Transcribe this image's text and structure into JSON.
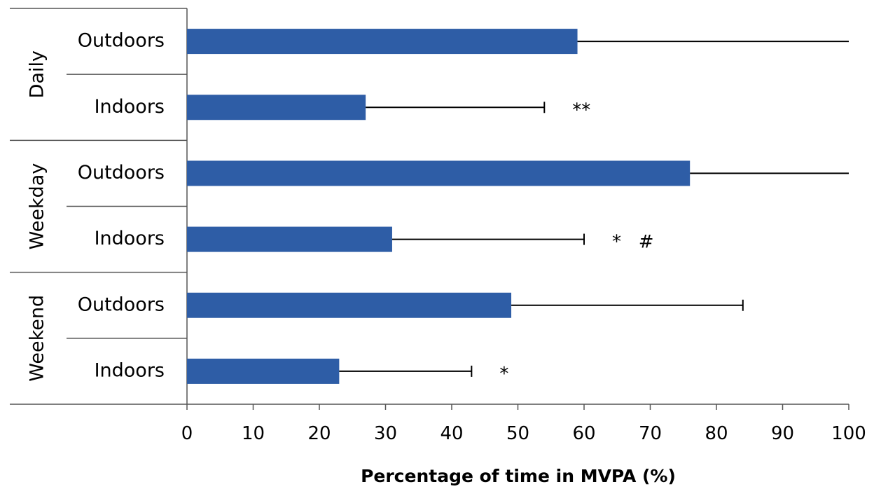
{
  "chart_data": {
    "type": "bar",
    "orientation": "horizontal",
    "xlabel": "Percentage of time in MVPA (%)",
    "xlim": [
      0,
      100
    ],
    "xticks": [
      0,
      10,
      20,
      30,
      40,
      50,
      60,
      70,
      80,
      90,
      100
    ],
    "bar_color": "#2E5DA6",
    "groups": [
      {
        "label": "Daily",
        "bars": [
          {
            "label": "Outdoors",
            "value": 59,
            "error_upper": 100,
            "annotation": ""
          },
          {
            "label": "Indoors",
            "value": 27,
            "error_upper": 54,
            "annotation": "**"
          }
        ]
      },
      {
        "label": "Weekday",
        "bars": [
          {
            "label": "Outdoors",
            "value": 76,
            "error_upper": 100,
            "annotation": ""
          },
          {
            "label": "Indoors",
            "value": 31,
            "error_upper": 60,
            "annotation": "*   #"
          }
        ]
      },
      {
        "label": "Weekend",
        "bars": [
          {
            "label": "Outdoors",
            "value": 49,
            "error_upper": 84,
            "annotation": ""
          },
          {
            "label": "Indoors",
            "value": 23,
            "error_upper": 43,
            "annotation": "*"
          }
        ]
      }
    ]
  }
}
